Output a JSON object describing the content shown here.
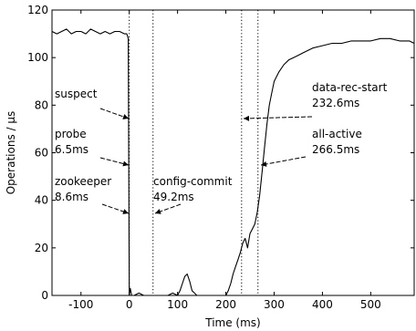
{
  "chart_data": {
    "type": "line",
    "xlabel": "Time (ms)",
    "ylabel": "Operations / μs",
    "xlim": [
      -160,
      590
    ],
    "ylim": [
      0,
      120
    ],
    "x_ticks": [
      -100,
      0,
      100,
      200,
      300,
      400,
      500
    ],
    "y_ticks": [
      0,
      20,
      40,
      60,
      80,
      100,
      120
    ],
    "x_tick_labels": [
      "-100",
      "0",
      "100",
      "200",
      "300",
      "400",
      "500"
    ],
    "y_tick_labels": [
      "0",
      "20",
      "40",
      "60",
      "80",
      "100",
      "120"
    ],
    "vlines": [
      {
        "x": 0,
        "style": "dotted"
      },
      {
        "x": 49.2,
        "style": "dotted"
      },
      {
        "x": 232.6,
        "style": "dotted"
      },
      {
        "x": 266.5,
        "style": "dotted"
      }
    ],
    "annotations": [
      {
        "name": "suspect",
        "lines": [
          "suspect"
        ],
        "target": [
          0,
          74
        ]
      },
      {
        "name": "probe",
        "lines": [
          "probe",
          "6.5ms"
        ],
        "target": [
          0,
          55
        ]
      },
      {
        "name": "zookeeper",
        "lines": [
          "zookeeper",
          "8.6ms"
        ],
        "target": [
          0,
          35
        ]
      },
      {
        "name": "config-commit",
        "lines": [
          "config-commit",
          "49.2ms"
        ],
        "target": [
          49.2,
          35
        ]
      },
      {
        "name": "data-rec-start",
        "lines": [
          "data-rec-start",
          "232.6ms"
        ],
        "target": [
          232.6,
          75
        ]
      },
      {
        "name": "all-active",
        "lines": [
          "all-active",
          "266.5ms"
        ],
        "target": [
          266.5,
          56
        ]
      }
    ],
    "series": [
      {
        "x": [
          -160,
          -150,
          -140,
          -130,
          -120,
          -110,
          -100,
          -90,
          -80,
          -70,
          -60,
          -50,
          -40,
          -30,
          -20,
          -10,
          -5,
          -2,
          0,
          2,
          5,
          10,
          20,
          30,
          40,
          50,
          60,
          70,
          80,
          90,
          100,
          105,
          110,
          115,
          120,
          125,
          130,
          135,
          140,
          150,
          160,
          170,
          180,
          190,
          200,
          205,
          210,
          215,
          220,
          225,
          230,
          235,
          240,
          245,
          250,
          255,
          260,
          265,
          270,
          275,
          280,
          285,
          290,
          295,
          300,
          310,
          320,
          330,
          340,
          350,
          360,
          380,
          400,
          420,
          440,
          460,
          480,
          500,
          520,
          540,
          560,
          580,
          590
        ],
        "y": [
          111,
          110,
          111,
          112,
          110,
          111,
          111,
          110,
          112,
          111,
          110,
          111,
          110,
          111,
          111,
          110,
          110,
          108,
          0,
          3,
          0,
          0,
          1,
          0,
          0,
          0,
          0,
          0,
          0,
          1,
          0,
          2,
          5,
          8,
          9,
          6,
          2,
          1,
          0,
          0,
          0,
          0,
          0,
          0,
          0,
          2,
          5,
          9,
          12,
          15,
          18,
          22,
          24,
          20,
          26,
          28,
          30,
          35,
          42,
          52,
          62,
          72,
          80,
          85,
          90,
          94,
          97,
          99,
          100,
          101,
          102,
          104,
          105,
          106,
          106,
          107,
          107,
          107,
          108,
          108,
          107,
          107,
          106
        ]
      }
    ]
  }
}
